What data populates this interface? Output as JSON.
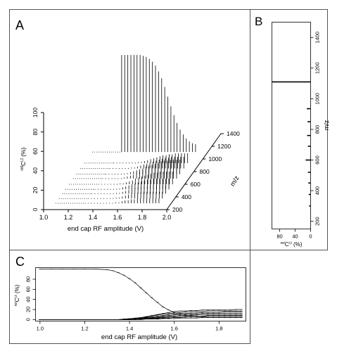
{
  "figure": {
    "panels": [
      {
        "id": "A",
        "letter": "A"
      },
      {
        "id": "B",
        "letter": "B"
      },
      {
        "id": "C",
        "letter": "C"
      }
    ]
  },
  "chart_data": [
    {
      "panel": "A",
      "type": "bar",
      "projection": "3d-waterfall",
      "title": "",
      "xlabel": "end cap RF amplitude (V)",
      "ylabel": "relCi,t (%)",
      "ylabel_prefix": "rel",
      "ylabel_main": "C",
      "ylabel_sup": "i,t",
      "ylabel_suffix": " (%)",
      "zlabel": "m/z",
      "xlim": [
        1.0,
        2.0
      ],
      "ylim": [
        0,
        100
      ],
      "zlim": [
        200,
        1400
      ],
      "x_ticks": [
        "1.0",
        "1.2",
        "1.4",
        "1.6",
        "1.8",
        "2.0"
      ],
      "y_ticks": [
        "0",
        "20",
        "40",
        "60",
        "80",
        "100"
      ],
      "z_ticks": [
        "200",
        "400",
        "600",
        "800",
        "1000",
        "1200",
        "1400"
      ],
      "x": [
        1.3,
        1.325,
        1.35,
        1.375,
        1.4,
        1.425,
        1.45,
        1.475,
        1.5,
        1.525,
        1.55,
        1.575,
        1.6,
        1.625,
        1.65,
        1.675,
        1.7,
        1.725,
        1.75,
        1.775,
        1.8,
        1.825,
        1.85,
        1.875,
        1.9
      ],
      "series": [
        {
          "mz": 1110,
          "values": [
            100,
            100,
            100,
            100,
            100,
            100,
            100,
            99,
            98,
            96,
            93,
            89,
            83,
            76,
            67,
            57,
            47,
            38,
            30,
            23,
            18,
            14,
            11,
            9,
            8
          ]
        },
        {
          "mz": 935,
          "values": [
            0,
            0,
            0,
            0,
            0,
            0,
            0,
            0,
            1,
            1,
            2,
            3,
            4,
            5,
            6,
            7,
            8,
            8,
            9,
            9,
            10,
            10,
            10,
            10,
            10
          ]
        },
        {
          "mz": 850,
          "values": [
            0,
            0,
            0,
            0,
            0,
            0,
            0,
            1,
            1,
            2,
            3,
            4,
            5,
            6,
            7,
            8,
            9,
            10,
            11,
            11,
            12,
            12,
            12,
            12,
            12
          ]
        },
        {
          "mz": 760,
          "values": [
            0,
            0,
            0,
            0,
            0,
            0,
            0,
            1,
            2,
            3,
            4,
            5,
            6,
            8,
            9,
            10,
            11,
            12,
            13,
            14,
            14,
            15,
            15,
            15,
            15
          ]
        },
        {
          "mz": 690,
          "values": [
            0,
            0,
            0,
            0,
            0,
            0,
            0,
            1,
            2,
            3,
            4,
            6,
            7,
            9,
            10,
            12,
            13,
            14,
            15,
            16,
            17,
            17,
            18,
            18,
            18
          ]
        },
        {
          "mz": 600,
          "values": [
            0,
            0,
            0,
            0,
            0,
            0,
            0,
            1,
            1,
            2,
            3,
            4,
            6,
            7,
            8,
            9,
            10,
            11,
            12,
            12,
            13,
            13,
            13,
            13,
            13
          ]
        },
        {
          "mz": 520,
          "values": [
            0,
            0,
            0,
            0,
            0,
            0,
            0,
            0,
            1,
            2,
            3,
            4,
            5,
            6,
            7,
            8,
            9,
            10,
            10,
            11,
            11,
            11,
            11,
            11,
            11
          ]
        },
        {
          "mz": 450,
          "values": [
            0,
            0,
            0,
            0,
            0,
            0,
            0,
            0,
            1,
            1,
            2,
            3,
            4,
            5,
            6,
            7,
            7,
            8,
            8,
            9,
            9,
            9,
            9,
            9,
            9
          ]
        },
        {
          "mz": 375,
          "values": [
            0,
            0,
            0,
            0,
            0,
            0,
            0,
            0,
            0,
            1,
            1,
            2,
            3,
            4,
            5,
            5,
            6,
            6,
            7,
            7,
            7,
            7,
            7,
            7,
            7
          ]
        },
        {
          "mz": 300,
          "values": [
            0,
            0,
            0,
            0,
            0,
            0,
            0,
            0,
            0,
            0,
            1,
            1,
            2,
            3,
            3,
            4,
            4,
            5,
            5,
            5,
            5,
            5,
            5,
            5,
            5
          ]
        }
      ]
    },
    {
      "panel": "B",
      "type": "bar",
      "orientation": "horizontal",
      "title": "",
      "xlabel": "relCi,t (%)",
      "xlabel_prefix": "rel",
      "xlabel_main": "C",
      "xlabel_sup": "i,t",
      "xlabel_suffix": " (%)",
      "ylabel": "m/z",
      "xlim": [
        100,
        0
      ],
      "ylim": [
        150,
        1500
      ],
      "x_ticks": [
        "80",
        "40",
        "0"
      ],
      "y_ticks": [
        "200",
        "400",
        "600",
        "800",
        "1000",
        "1200",
        "1400"
      ],
      "mz": [
        1110,
        935,
        850,
        760,
        690,
        600,
        520,
        450,
        375,
        300
      ],
      "values": [
        100,
        10,
        8,
        9,
        7,
        13,
        7,
        6,
        5,
        4
      ]
    },
    {
      "panel": "C",
      "type": "line",
      "title": "",
      "xlabel": "end cap RF amplitude (V)",
      "ylabel": "relCi,t (%)",
      "ylabel_prefix": "rel",
      "ylabel_main": "C",
      "ylabel_sup": "i,t",
      "ylabel_suffix": " (%)",
      "xlim": [
        0.98,
        1.92
      ],
      "ylim": [
        -3,
        103
      ],
      "x_ticks": [
        "1.0",
        "1.2",
        "1.4",
        "1.6",
        "1.8"
      ],
      "y_ticks": [
        "0",
        "20",
        "40",
        "60",
        "80"
      ],
      "grid": false,
      "x": [
        1.0,
        1.05,
        1.1,
        1.15,
        1.2,
        1.25,
        1.3,
        1.325,
        1.35,
        1.375,
        1.4,
        1.425,
        1.45,
        1.475,
        1.5,
        1.525,
        1.55,
        1.575,
        1.6,
        1.625,
        1.65,
        1.675,
        1.7,
        1.725,
        1.75,
        1.775,
        1.8,
        1.825,
        1.85,
        1.875,
        1.9
      ],
      "series": [
        {
          "values": [
            100,
            100,
            100,
            100,
            100,
            100,
            99,
            97,
            93,
            88,
            81,
            73,
            63,
            53,
            43,
            34,
            25,
            19,
            14,
            11,
            9,
            8,
            7,
            7,
            6,
            6,
            6,
            6,
            6,
            6,
            6
          ]
        },
        {
          "values": [
            0,
            0,
            0,
            0,
            0,
            0,
            0,
            0,
            0,
            1,
            2,
            3,
            4,
            6,
            8,
            10,
            12,
            14,
            16,
            17,
            17,
            18,
            18,
            19,
            19,
            19,
            19,
            19,
            19,
            20,
            20
          ]
        },
        {
          "values": [
            0,
            0,
            0,
            0,
            0,
            0,
            0,
            0,
            0,
            1,
            1,
            2,
            3,
            5,
            7,
            9,
            11,
            12,
            13,
            14,
            15,
            16,
            16,
            16,
            17,
            17,
            17,
            17,
            17,
            17,
            17
          ]
        },
        {
          "values": [
            0,
            0,
            0,
            0,
            0,
            0,
            0,
            0,
            0,
            0,
            1,
            2,
            3,
            4,
            5,
            7,
            8,
            10,
            11,
            12,
            12,
            13,
            13,
            14,
            14,
            14,
            14,
            15,
            15,
            15,
            15
          ]
        },
        {
          "values": [
            0,
            0,
            0,
            0,
            0,
            0,
            0,
            0,
            0,
            0,
            1,
            1,
            2,
            3,
            4,
            5,
            7,
            8,
            9,
            10,
            10,
            11,
            11,
            12,
            12,
            12,
            12,
            12,
            12,
            12,
            12
          ]
        },
        {
          "values": [
            0,
            0,
            0,
            0,
            0,
            0,
            0,
            0,
            0,
            0,
            0,
            1,
            2,
            2,
            3,
            4,
            5,
            6,
            7,
            8,
            8,
            9,
            9,
            10,
            10,
            10,
            10,
            10,
            10,
            10,
            10
          ]
        },
        {
          "values": [
            0,
            0,
            0,
            0,
            0,
            0,
            0,
            0,
            0,
            0,
            0,
            1,
            1,
            2,
            2,
            3,
            4,
            5,
            5,
            6,
            6,
            7,
            7,
            7,
            8,
            8,
            8,
            8,
            8,
            8,
            8
          ]
        },
        {
          "values": [
            0,
            0,
            0,
            0,
            0,
            0,
            0,
            0,
            0,
            0,
            0,
            0,
            1,
            1,
            2,
            2,
            3,
            3,
            4,
            4,
            5,
            5,
            5,
            5,
            6,
            6,
            6,
            6,
            6,
            6,
            6
          ]
        },
        {
          "values": [
            0,
            0,
            0,
            0,
            0,
            0,
            0,
            0,
            0,
            0,
            0,
            0,
            0,
            1,
            1,
            1,
            2,
            2,
            2,
            3,
            3,
            3,
            3,
            4,
            4,
            4,
            4,
            4,
            4,
            4,
            4
          ]
        }
      ]
    }
  ]
}
